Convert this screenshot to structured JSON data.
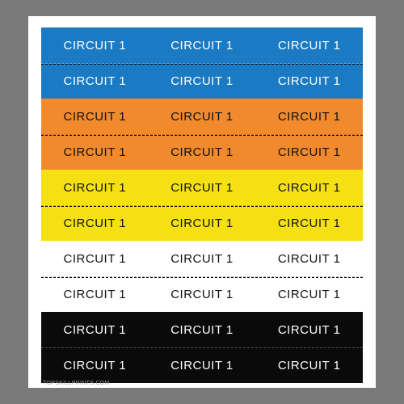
{
  "sheet": {
    "background": "#ffffff",
    "watermark": "TOPSKILLPRINTS.COM",
    "label_text": "CIRCUIT 1",
    "label_fontsize": 15,
    "labels_per_row": 3,
    "groups": [
      {
        "name": "blue",
        "bg": "#1a7bc4",
        "text": "#ffffff",
        "divider": "#63a6d6",
        "rows": 2
      },
      {
        "name": "orange",
        "bg": "#f08a2c",
        "text": "#111111",
        "divider": "#c56f1f",
        "rows": 2
      },
      {
        "name": "yellow",
        "bg": "#f4e013",
        "text": "#111111",
        "divider": "#c0b010",
        "rows": 2
      },
      {
        "name": "white",
        "bg": "#ffffff",
        "text": "#111111",
        "divider": "#bdbdbd",
        "rows": 2
      },
      {
        "name": "black",
        "bg": "#0a0a0a",
        "text": "#ffffff",
        "divider": "#5a5a5a",
        "rows": 2
      }
    ]
  }
}
